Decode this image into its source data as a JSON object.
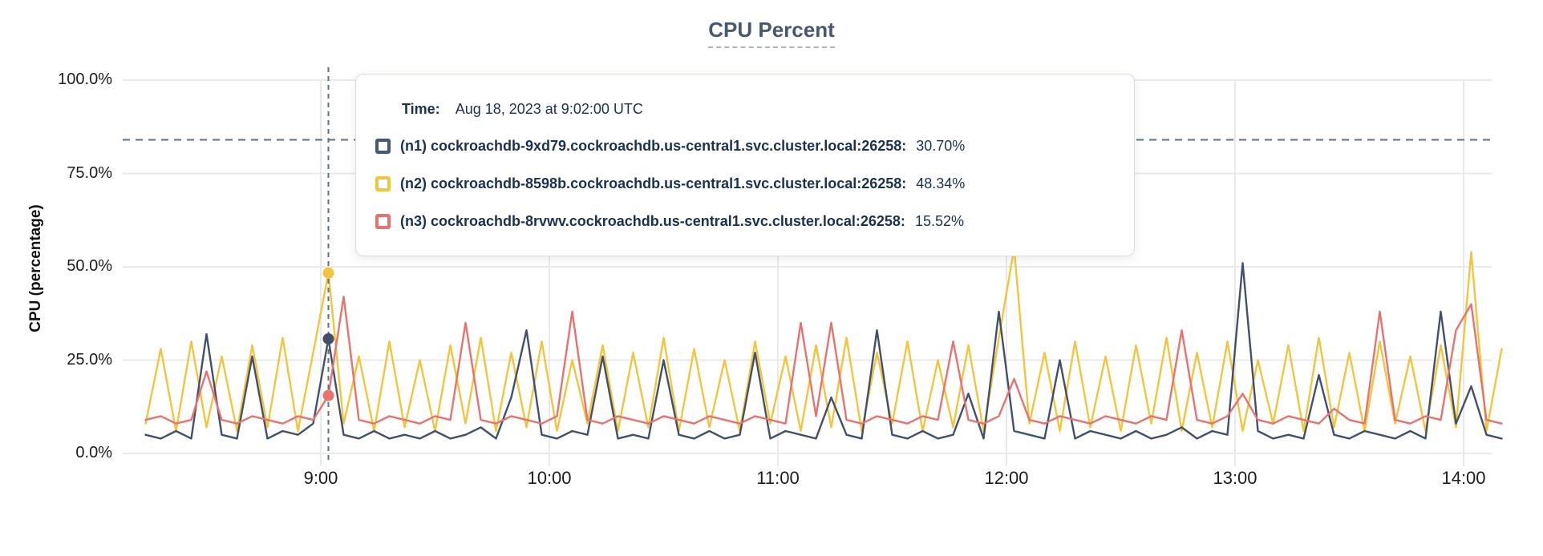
{
  "title": "CPU Percent",
  "colors": {
    "navy": "#43506C",
    "yellow": "#F2C53F",
    "red": "#E8736E",
    "dashed_guides": "#5F7281",
    "grid": "#EAEAEA",
    "text_navy": "#1B3154",
    "title": "#475872"
  },
  "y_axis": {
    "label": "CPU (percentage)",
    "tick_labels": [
      "100.0%",
      "75.0%",
      "50.0%",
      "25.0%",
      "0.0%"
    ]
  },
  "x_axis": {
    "tick_labels": [
      "9:00",
      "10:00",
      "11:00",
      "12:00",
      "13:00",
      "14:00"
    ]
  },
  "tooltip": {
    "time_label": "Time:",
    "time_value": "Aug 18, 2023 at 9:02:00 UTC",
    "rows": [
      {
        "name": "(n1) cockroachdb-9xd79.cockroachdb.us-central1.svc.cluster.local:26258:",
        "value": "30.70%",
        "color": "#475872"
      },
      {
        "name": "(n2) cockroachdb-8598b.cockroachdb.us-central1.svc.cluster.local:26258:",
        "value": "48.34%",
        "color": "#F2C53F"
      },
      {
        "name": "(n3) cockroachdb-8rvwv.cockroachdb.us-central1.svc.cluster.local:26258:",
        "value": "15.52%",
        "color": "#E8736E"
      }
    ]
  },
  "chart_data": {
    "type": "line",
    "title": "CPU Percent",
    "xlabel": "",
    "ylabel": "CPU (percentage)",
    "ylim": [
      0,
      100
    ],
    "y_tick_values": [
      0,
      25,
      50,
      75,
      100
    ],
    "y_tick_labels": [
      "0.0%",
      "25.0%",
      "50.0%",
      "75.0%",
      "100.0%"
    ],
    "x_tick_minutes": [
      540,
      600,
      660,
      720,
      780,
      840
    ],
    "x_tick_labels": [
      "9:00",
      "10:00",
      "11:00",
      "12:00",
      "13:00",
      "14:00"
    ],
    "xlim_minutes": [
      494,
      850
    ],
    "threshold_pct": 84,
    "hover_minute": 542,
    "grid": true,
    "legend_position": "tooltip",
    "x_minutes": [
      494,
      498,
      502,
      506,
      510,
      514,
      518,
      522,
      526,
      530,
      534,
      538,
      542,
      546,
      550,
      554,
      558,
      562,
      566,
      570,
      574,
      578,
      582,
      586,
      590,
      594,
      598,
      602,
      606,
      610,
      614,
      618,
      622,
      626,
      630,
      634,
      638,
      642,
      646,
      650,
      654,
      658,
      662,
      666,
      670,
      674,
      678,
      682,
      686,
      690,
      694,
      698,
      702,
      706,
      710,
      714,
      718,
      722,
      726,
      730,
      734,
      738,
      742,
      746,
      750,
      754,
      758,
      762,
      766,
      770,
      774,
      778,
      782,
      786,
      790,
      794,
      798,
      802,
      806,
      810,
      814,
      818,
      822,
      826,
      830,
      834,
      838,
      842,
      846,
      850
    ],
    "series": [
      {
        "id": "n1",
        "name": "(n1) cockroachdb-9xd79.cockroachdb.us-central1.svc.cluster.local:26258",
        "color": "#43506C",
        "hover_value": 30.7,
        "values": [
          5,
          4,
          6,
          4,
          32,
          5,
          4,
          26,
          4,
          6,
          5,
          8,
          30.7,
          5,
          4,
          6,
          4,
          5,
          4,
          6,
          4,
          5,
          7,
          4,
          15,
          33,
          5,
          4,
          6,
          5,
          26,
          4,
          5,
          4,
          25,
          5,
          4,
          6,
          4,
          5,
          27,
          4,
          6,
          5,
          4,
          15,
          5,
          4,
          33,
          5,
          4,
          6,
          4,
          5,
          16,
          4,
          38,
          6,
          5,
          4,
          25,
          4,
          6,
          5,
          4,
          6,
          4,
          5,
          7,
          4,
          6,
          5,
          51,
          6,
          4,
          5,
          4,
          21,
          5,
          4,
          6,
          5,
          4,
          6,
          4,
          38,
          8,
          18,
          5,
          4
        ]
      },
      {
        "id": "n2",
        "name": "(n2) cockroachdb-8598b.cockroachdb.us-central1.svc.cluster.local:26258",
        "color": "#F2C53F",
        "hover_value": 48.34,
        "values": [
          8,
          28,
          6,
          30,
          7,
          26,
          6,
          29,
          7,
          31,
          6,
          27,
          48.34,
          8,
          26,
          6,
          30,
          7,
          25,
          6,
          29,
          8,
          31,
          6,
          27,
          7,
          30,
          6,
          25,
          8,
          29,
          6,
          27,
          7,
          31,
          6,
          28,
          7,
          25,
          6,
          30,
          8,
          26,
          6,
          29,
          7,
          31,
          6,
          27,
          8,
          30,
          6,
          25,
          7,
          29,
          6,
          31,
          55,
          8,
          27,
          6,
          30,
          7,
          26,
          6,
          29,
          8,
          31,
          6,
          27,
          7,
          30,
          6,
          25,
          8,
          29,
          6,
          31,
          7,
          27,
          6,
          30,
          8,
          26,
          6,
          29,
          7,
          54,
          6,
          28
        ]
      },
      {
        "id": "n3",
        "name": "(n3) cockroachdb-8rvwv.cockroachdb.us-central1.svc.cluster.local:26258",
        "color": "#E8736E",
        "hover_value": 15.52,
        "values": [
          9,
          10,
          8,
          9,
          22,
          9,
          8,
          10,
          9,
          8,
          10,
          9,
          15.52,
          42,
          9,
          8,
          10,
          9,
          8,
          10,
          9,
          35,
          9,
          8,
          10,
          9,
          8,
          10,
          38,
          9,
          8,
          10,
          9,
          8,
          10,
          9,
          8,
          10,
          9,
          8,
          10,
          9,
          8,
          35,
          10,
          35,
          9,
          8,
          10,
          9,
          8,
          10,
          9,
          30,
          9,
          8,
          10,
          20,
          9,
          8,
          10,
          9,
          8,
          10,
          9,
          8,
          10,
          9,
          33,
          9,
          8,
          10,
          16,
          9,
          8,
          10,
          9,
          8,
          12,
          9,
          8,
          38,
          9,
          8,
          10,
          9,
          33,
          40,
          9,
          8
        ]
      }
    ]
  }
}
